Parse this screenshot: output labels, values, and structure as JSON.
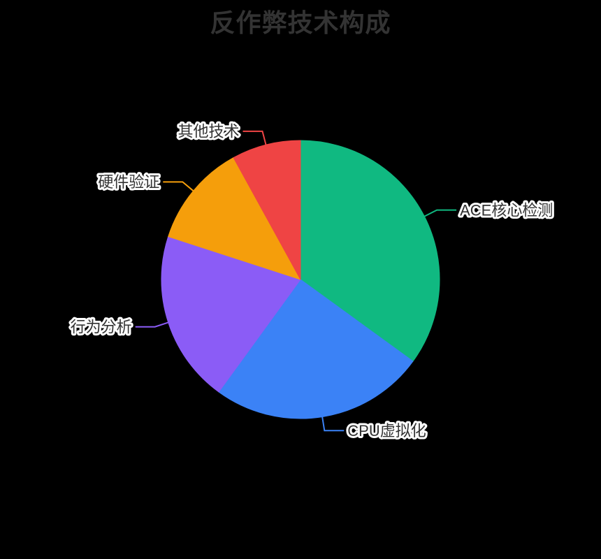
{
  "background_color": "#000000",
  "chart_data": {
    "type": "pie",
    "title": "反作弊技术构成",
    "title_style": {
      "color": "#333333",
      "font_size": 36
    },
    "center": [
      430,
      400
    ],
    "radius": 199,
    "start_angle_deg": 0,
    "direction": "clockwise",
    "slices": [
      {
        "id": "ace-core-detection",
        "label": "ACE核心检测",
        "value": 35,
        "color": "#10B981"
      },
      {
        "id": "cpu-virtualization",
        "label": "CPU虚拟化",
        "value": 25,
        "color": "#3B82F6"
      },
      {
        "id": "behavior-analysis",
        "label": "行为分析",
        "value": 20,
        "color": "#8B5CF6"
      },
      {
        "id": "hardware-verification",
        "label": "硬件验证",
        "value": 12,
        "color": "#F59E0B"
      },
      {
        "id": "other-tech",
        "label": "其他技术",
        "value": 8,
        "color": "#EF4444"
      }
    ],
    "label_style": {
      "color": "#333333",
      "outline": "#FFFFFF",
      "font_size": 22
    },
    "label_line": {
      "length": 20,
      "length2": 28,
      "width": 2
    },
    "legend": "none",
    "values_shown_as": "labels-only (percentages estimated from slice angles)"
  }
}
